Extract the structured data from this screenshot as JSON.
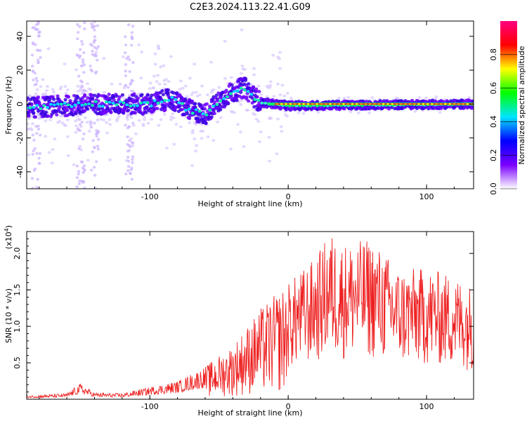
{
  "title": "C2E3.2024.113.22.41.G09",
  "chart_data": [
    {
      "type": "heatmap",
      "xlabel": "Height of straight line (km)",
      "ylabel": "Frequency (Hz)",
      "xlim": [
        -189,
        134
      ],
      "ylim": [
        -50,
        49
      ],
      "xticks": [
        -100,
        0,
        100
      ],
      "yticks": [
        -40,
        -20,
        0,
        20,
        40
      ],
      "colorbar": {
        "label": "Normalized spectral amplitude",
        "range": [
          0.0,
          1.0
        ],
        "ticks": [
          "0.0",
          "0.2",
          "0.4",
          "0.6",
          "0.8"
        ],
        "colors": [
          "#ffffff",
          "#7a00ff",
          "#0000ff",
          "#00e5ff",
          "#00ff00",
          "#ffff00",
          "#ff0000",
          "#ff0080"
        ]
      },
      "ridge": [
        {
          "x": -185,
          "f": -2
        },
        {
          "x": -160,
          "f": -1
        },
        {
          "x": -140,
          "f": 0
        },
        {
          "x": -120,
          "f": 0
        },
        {
          "x": -100,
          "f": 0
        },
        {
          "x": -85,
          "f": 3
        },
        {
          "x": -70,
          "f": -4
        },
        {
          "x": -60,
          "f": -6
        },
        {
          "x": -45,
          "f": 5
        },
        {
          "x": -32,
          "f": 10
        },
        {
          "x": -20,
          "f": 1
        },
        {
          "x": 0,
          "f": -1
        },
        {
          "x": 134,
          "f": 0
        }
      ]
    },
    {
      "type": "line",
      "xlabel": "Height of straight line (km)",
      "ylabel": "SNR (10 * v/v)",
      "multiplier": "(x10",
      "multiplier_exp": "4",
      "multiplier_close": ")",
      "xlim": [
        -189,
        134
      ],
      "ylim": [
        0,
        2.3
      ],
      "xticks": [
        -100,
        0,
        100
      ],
      "yticks": [
        "0.5",
        "1.0",
        "1.5",
        "2.0"
      ],
      "color": "#ee2222",
      "envelope": [
        {
          "x": -189,
          "v": 0.05
        },
        {
          "x": -160,
          "v": 0.08
        },
        {
          "x": -150,
          "v": 0.22
        },
        {
          "x": -140,
          "v": 0.09
        },
        {
          "x": -120,
          "v": 0.08
        },
        {
          "x": -100,
          "v": 0.17
        },
        {
          "x": -80,
          "v": 0.25
        },
        {
          "x": -60,
          "v": 0.45
        },
        {
          "x": -40,
          "v": 0.75
        },
        {
          "x": -20,
          "v": 1.25
        },
        {
          "x": 0,
          "v": 1.6
        },
        {
          "x": 20,
          "v": 1.95
        },
        {
          "x": 30,
          "v": 2.3
        },
        {
          "x": 40,
          "v": 2.15
        },
        {
          "x": 60,
          "v": 2.2
        },
        {
          "x": 80,
          "v": 1.8
        },
        {
          "x": 100,
          "v": 1.8
        },
        {
          "x": 120,
          "v": 1.7
        },
        {
          "x": 134,
          "v": 1.55
        }
      ]
    }
  ]
}
